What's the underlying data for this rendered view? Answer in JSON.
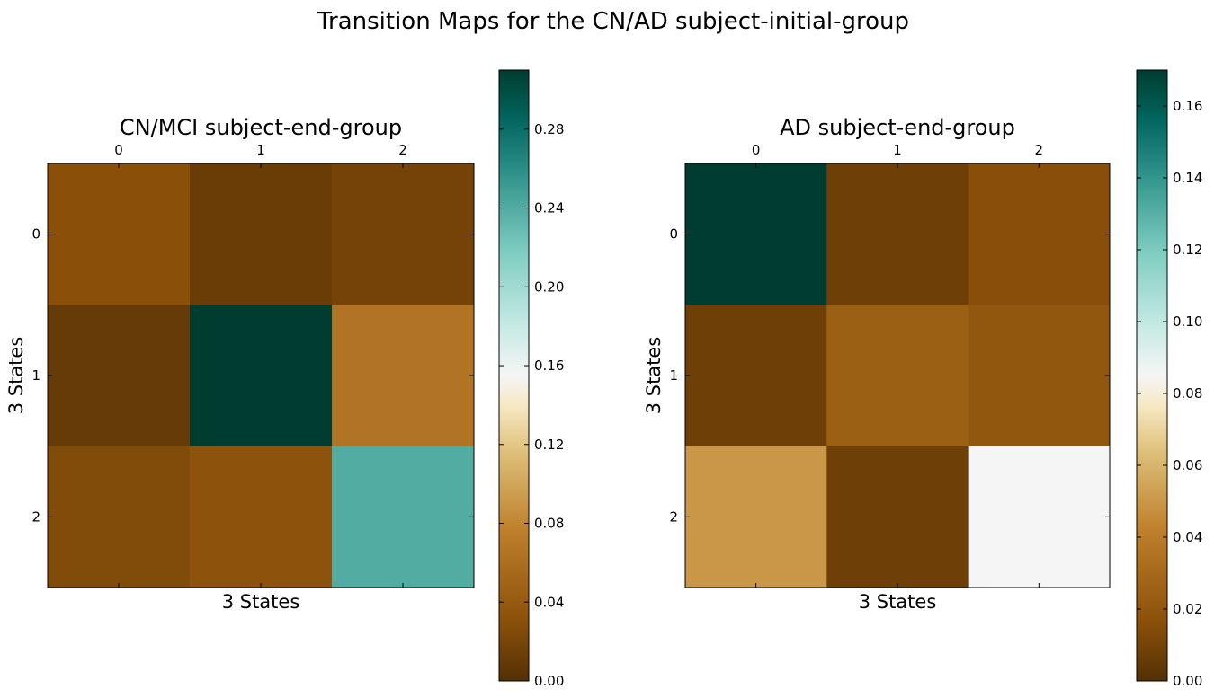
{
  "figure": {
    "title": "Transition Maps for the CN/AD subject-initial-group"
  },
  "chart_data": [
    {
      "type": "heatmap",
      "title": "CN/MCI subject-end-group",
      "xlabel": "3 States",
      "ylabel": "3 States",
      "x_tick_labels": [
        "0",
        "1",
        "2"
      ],
      "y_tick_labels": [
        "0",
        "1",
        "2"
      ],
      "x_axis_position": "top",
      "colormap": "BrBG",
      "values": [
        [
          0.03,
          0.012,
          0.018
        ],
        [
          0.01,
          0.31,
          0.065
        ],
        [
          0.025,
          0.032,
          0.24
        ]
      ],
      "vmin": 0.0,
      "vmax": 0.31,
      "colorbar": {
        "ticks": [
          0.0,
          0.04,
          0.08,
          0.12,
          0.16,
          0.2,
          0.24,
          0.28
        ],
        "tick_labels": [
          "0.00",
          "0.04",
          "0.08",
          "0.12",
          "0.16",
          "0.20",
          "0.24",
          "0.28"
        ]
      }
    },
    {
      "type": "heatmap",
      "title": "AD subject-end-group",
      "xlabel": "3 States",
      "ylabel": "3 States",
      "x_tick_labels": [
        "0",
        "1",
        "2"
      ],
      "y_tick_labels": [
        "0",
        "1",
        "2"
      ],
      "x_axis_position": "top",
      "colormap": "BrBG",
      "values": [
        [
          0.17,
          0.008,
          0.016
        ],
        [
          0.008,
          0.025,
          0.02
        ],
        [
          0.05,
          0.008,
          0.085
        ]
      ],
      "vmin": 0.0,
      "vmax": 0.17,
      "colorbar": {
        "ticks": [
          0.0,
          0.02,
          0.04,
          0.06,
          0.08,
          0.1,
          0.12,
          0.14,
          0.16
        ],
        "tick_labels": [
          "0.00",
          "0.02",
          "0.04",
          "0.06",
          "0.08",
          "0.10",
          "0.12",
          "0.14",
          "0.16"
        ]
      }
    }
  ]
}
